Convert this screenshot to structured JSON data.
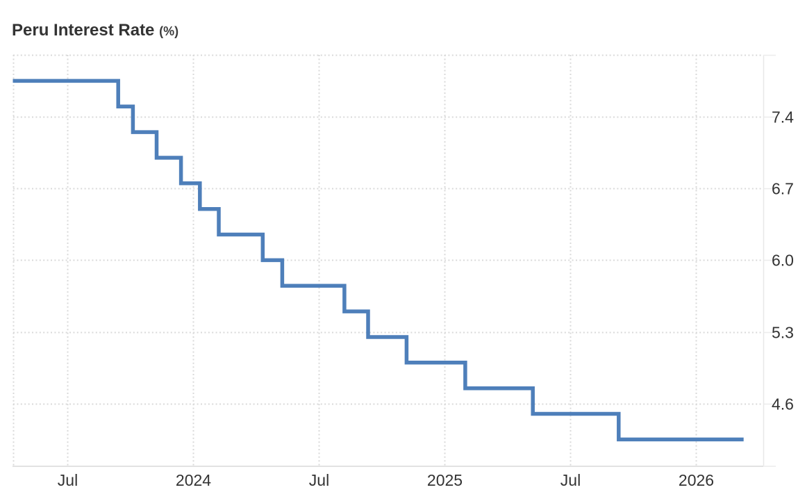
{
  "chart": {
    "title": "Peru Interest Rate",
    "unit_label": "(%)"
  },
  "chart_data": {
    "type": "line",
    "subtype": "step",
    "title": "Peru Interest Rate",
    "unit_label": "(%)",
    "legend": false,
    "grid": true,
    "line_color": "#4e7fba",
    "grid_color": "#d9d9d9",
    "axis_color": "#e2e2e2",
    "tick_color": "#ececec",
    "label_color": "#333333",
    "y_axis_side": "right",
    "y_ticks": [
      "7.4",
      "6.7",
      "6.0",
      "5.3",
      "4.6"
    ],
    "y_tick_values": [
      7.4,
      6.7,
      6.0,
      5.3,
      4.6
    ],
    "ylim_shown": [
      4.25,
      7.75
    ],
    "x_ticks": [
      {
        "label": "Jul",
        "date": "2023-07-01"
      },
      {
        "label": "2024",
        "date": "2024-01-01"
      },
      {
        "label": "Jul",
        "date": "2024-07-01"
      },
      {
        "label": "2025",
        "date": "2025-01-01"
      },
      {
        "label": "Jul",
        "date": "2025-07-01"
      },
      {
        "label": "2026",
        "date": "2026-01-01"
      }
    ],
    "points": [
      {
        "date": "2023-04-13",
        "value": 7.75
      },
      {
        "date": "2023-09-14",
        "value": 7.5
      },
      {
        "date": "2023-10-05",
        "value": 7.25
      },
      {
        "date": "2023-11-09",
        "value": 7.0
      },
      {
        "date": "2023-12-14",
        "value": 6.75
      },
      {
        "date": "2024-01-11",
        "value": 6.5
      },
      {
        "date": "2024-02-08",
        "value": 6.25
      },
      {
        "date": "2024-04-11",
        "value": 6.0
      },
      {
        "date": "2024-05-09",
        "value": 5.75
      },
      {
        "date": "2024-08-08",
        "value": 5.5
      },
      {
        "date": "2024-09-12",
        "value": 5.25
      },
      {
        "date": "2024-11-07",
        "value": 5.0
      },
      {
        "date": "2025-02-01",
        "value": 4.75
      },
      {
        "date": "2025-05-08",
        "value": 4.5
      },
      {
        "date": "2025-09-11",
        "value": 4.25
      }
    ],
    "end_date": "2026-03-10"
  }
}
